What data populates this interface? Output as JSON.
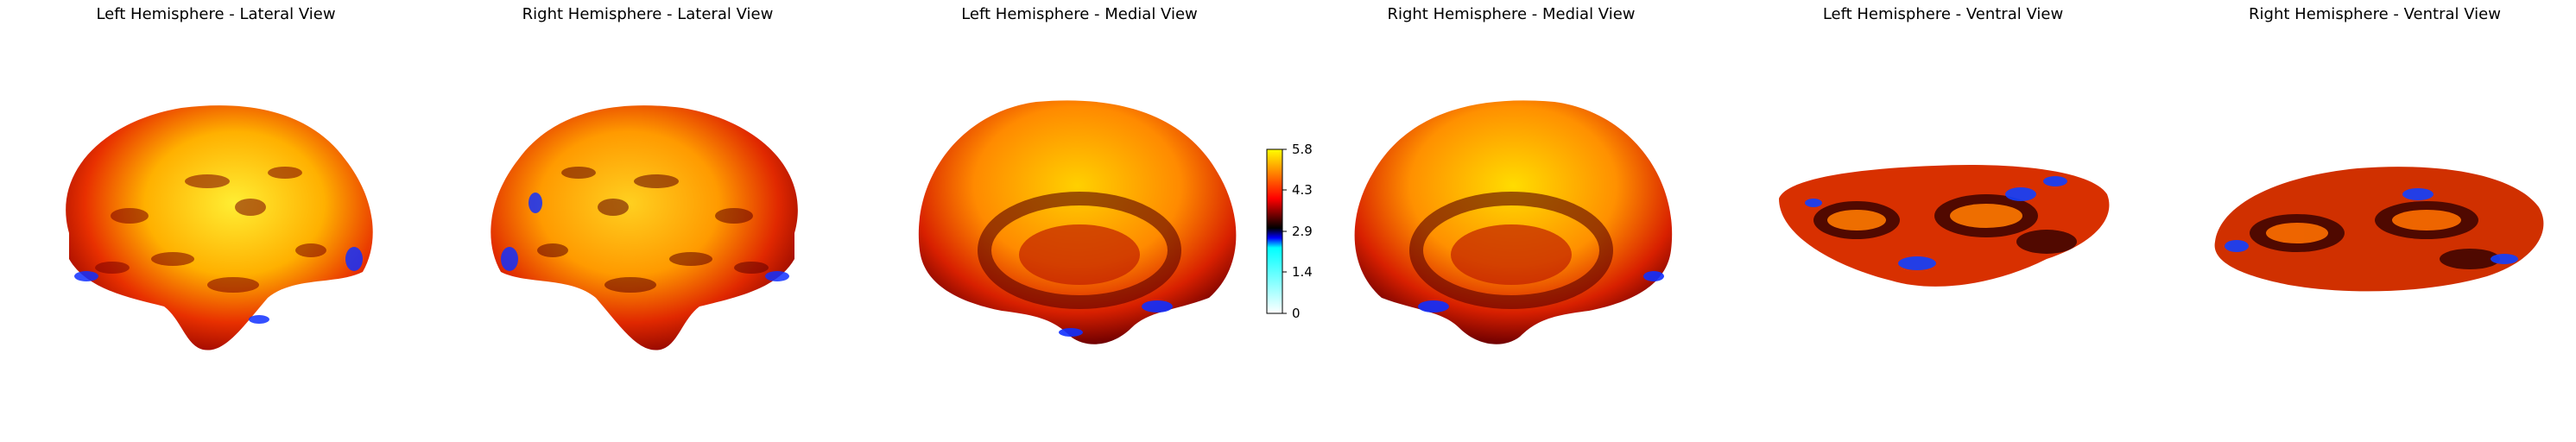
{
  "panels": [
    {
      "title": "Left Hemisphere - Lateral View",
      "view": "lateral",
      "shape": "lateral-left"
    },
    {
      "title": "Right Hemisphere - Lateral View",
      "view": "lateral",
      "shape": "lateral-right"
    },
    {
      "title": "Left Hemisphere - Medial View",
      "view": "medial",
      "shape": "medial-left"
    },
    {
      "title": "Right Hemisphere - Medial View",
      "view": "medial",
      "shape": "medial-right"
    },
    {
      "title": "Left Hemisphere - Ventral View",
      "view": "ventral",
      "shape": "ventral-left"
    },
    {
      "title": "Right Hemisphere - Ventral View",
      "view": "ventral",
      "shape": "ventral-right"
    }
  ],
  "colorbar": {
    "ticks": [
      "5.8",
      "4.3",
      "2.9",
      "1.4",
      "0"
    ],
    "min": 0,
    "max": 5.8,
    "colormap": "cold_hot",
    "colors": [
      "#ffffff",
      "#00ffff",
      "#0000ff",
      "#000000",
      "#ff0000",
      "#ffff00"
    ]
  }
}
